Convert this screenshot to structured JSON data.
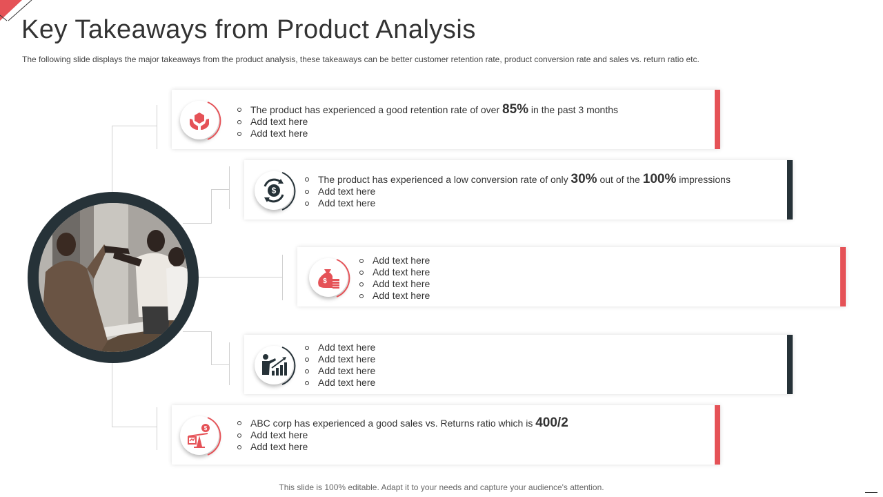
{
  "page": {
    "title": "Key Takeaways from Product Analysis",
    "subtitle": "The following slide displays the major takeaways from the product analysis, these takeaways can be better customer retention rate, product conversion rate and sales vs. return ratio etc.",
    "footer": "This slide is 100% editable. Adapt it to your needs and capture your audience's attention."
  },
  "colors": {
    "accent_red": "#e55257",
    "accent_dark": "#263238"
  },
  "cards": [
    {
      "icon": "hands-box-icon",
      "accent": "red",
      "item1": {
        "pre": "The product has experienced a good retention rate of over ",
        "val1": "85%",
        "post": " in the past 3 months"
      },
      "items": [
        "Add text here",
        "Add text here"
      ]
    },
    {
      "icon": "dollar-cycle-icon",
      "accent": "dark",
      "item1": {
        "pre": "The product has experienced  a low conversion rate of only ",
        "val1": "30%",
        "mid": " out of the ",
        "val2": "100%",
        "post": " impressions"
      },
      "items": [
        "Add text here",
        "Add text here"
      ]
    },
    {
      "icon": "money-bag-icon",
      "accent": "red",
      "items": [
        "Add text here",
        "Add text here",
        "Add text here",
        "Add text here"
      ]
    },
    {
      "icon": "presenter-chart-icon",
      "accent": "dark",
      "items": [
        "Add text here",
        "Add text here",
        "Add text here",
        "Add text here"
      ]
    },
    {
      "icon": "balance-scale-icon",
      "accent": "red",
      "item1": {
        "pre": "ABC corp has experienced a good sales vs. Returns ratio which is ",
        "val1": "400/2"
      },
      "items": [
        "Add text here",
        "Add text here"
      ]
    }
  ]
}
